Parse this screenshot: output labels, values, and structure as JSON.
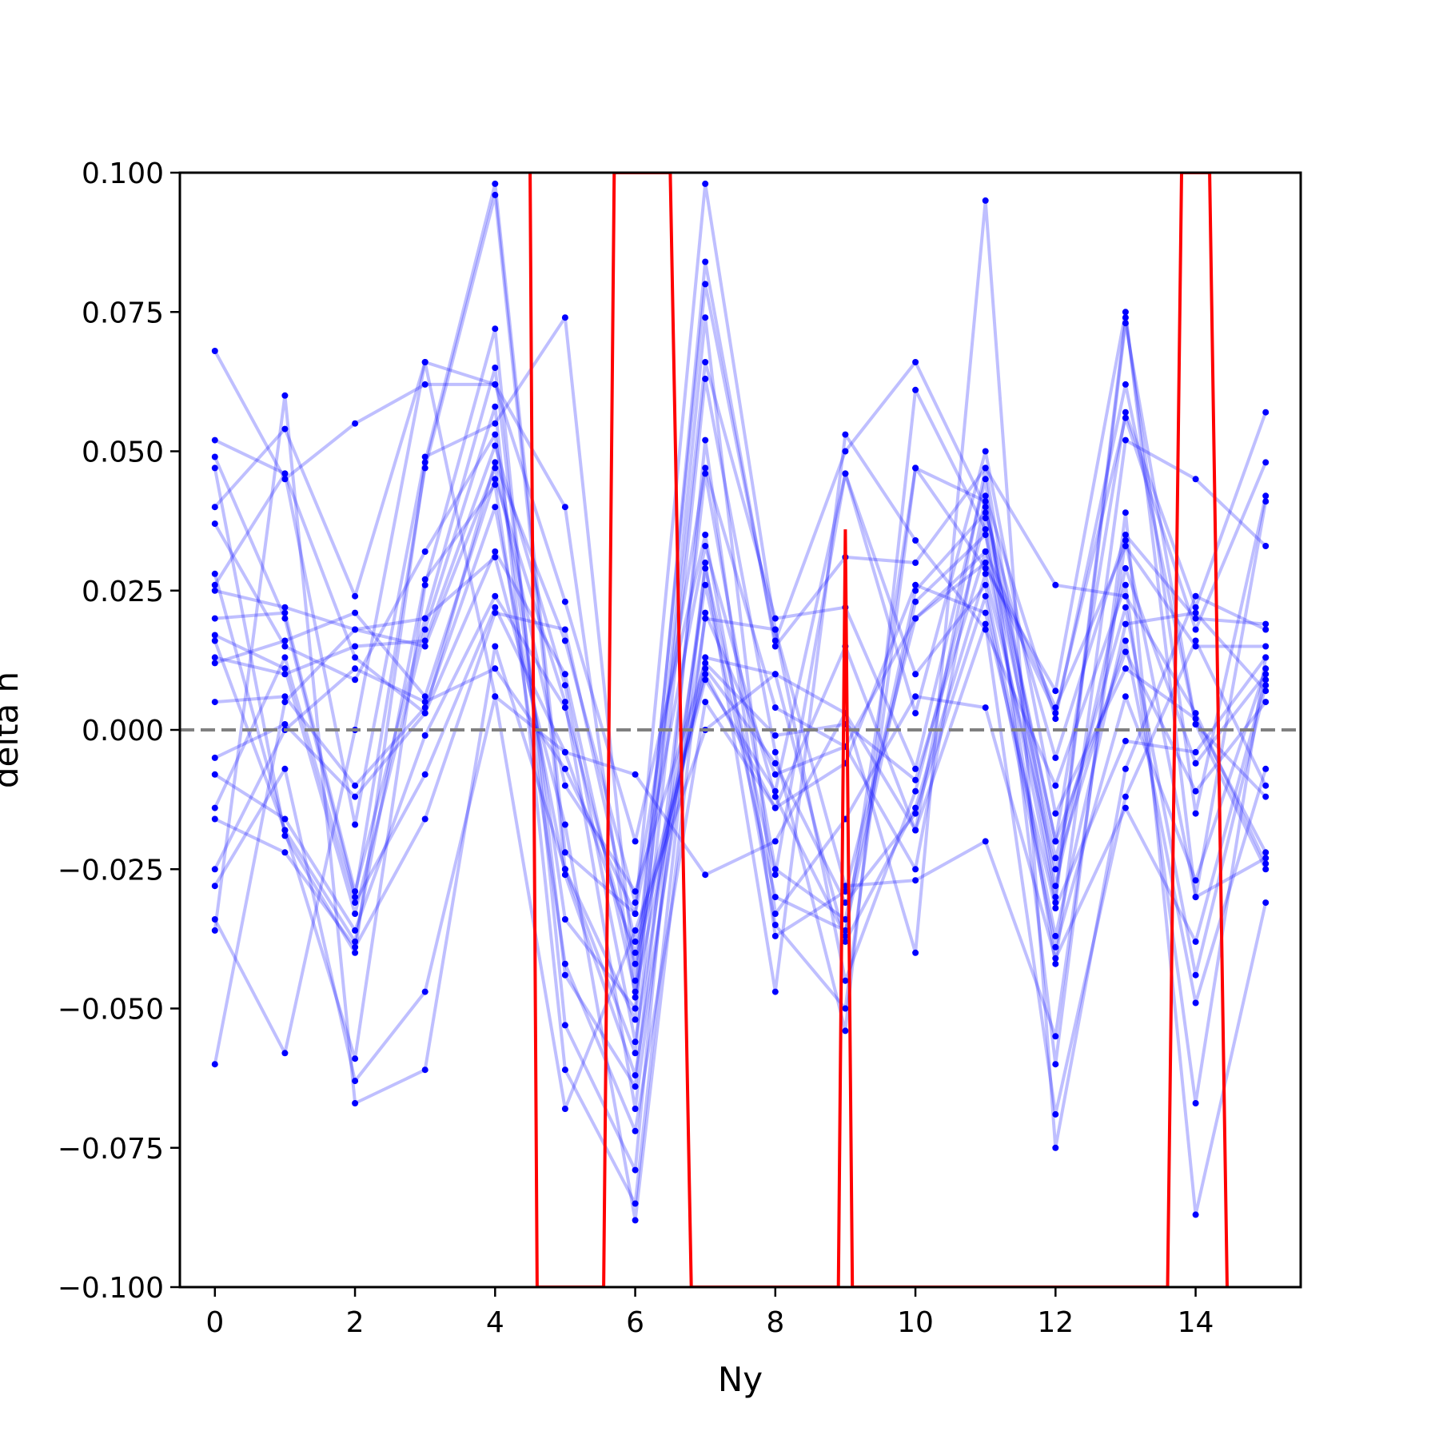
{
  "chart_data": {
    "type": "line",
    "title": "",
    "xlabel": "Ny",
    "ylabel": "delta n",
    "xlim": [
      -0.5,
      15.5
    ],
    "ylim": [
      -0.1,
      0.1
    ],
    "x_ticks": [
      0,
      2,
      4,
      6,
      8,
      10,
      12,
      14
    ],
    "x_tick_labels": [
      "0",
      "2",
      "4",
      "6",
      "8",
      "10",
      "12",
      "14"
    ],
    "y_ticks": [
      -0.1,
      -0.075,
      -0.05,
      -0.025,
      0.0,
      0.025,
      0.05,
      0.075,
      0.1
    ],
    "y_tick_labels": [
      "−0.100",
      "−0.075",
      "−0.050",
      "−0.025",
      "0.000",
      "0.025",
      "0.050",
      "0.075",
      "0.100"
    ],
    "reference_line": {
      "y": 0.0,
      "style": "dashed",
      "color": "#808080"
    },
    "grid": false,
    "colors": {
      "series": "#0000ff",
      "highlight": "#ff0000",
      "reference": "#808080"
    },
    "x": [
      0,
      1,
      2,
      3,
      4,
      5,
      6,
      7,
      8,
      9,
      10,
      11,
      12,
      13,
      14,
      15
    ],
    "series": [
      {
        "values": [
          0.068,
          0.045,
          0.055,
          0.062,
          0.062,
          0.04,
          -0.048,
          0.084,
          0.015,
          0.031,
          0.03,
          0.047,
          0.026,
          0.024,
          0.003,
          -0.024
        ]
      },
      {
        "values": [
          0.052,
          0.046,
          -0.017,
          0.049,
          0.055,
          0.074,
          -0.045,
          0.08,
          0.016,
          0.05,
          0.066,
          0.04,
          -0.02,
          0.057,
          0.022,
          0.057
        ]
      },
      {
        "values": [
          0.049,
          0.02,
          -0.03,
          0.047,
          0.096,
          -0.025,
          -0.058,
          0.063,
          -0.004,
          -0.054,
          0.061,
          0.036,
          -0.042,
          0.052,
          0.045,
          0.033
        ]
      },
      {
        "values": [
          0.047,
          -0.019,
          -0.04,
          0.048,
          0.098,
          -0.022,
          -0.033,
          0.033,
          -0.012,
          -0.037,
          0.047,
          0.041,
          -0.03,
          0.074,
          -0.015,
          0.042
        ]
      },
      {
        "values": [
          0.04,
          0.054,
          0.024,
          0.066,
          0.062,
          0.023,
          -0.02,
          0.035,
          -0.035,
          -0.05,
          0.047,
          0.029,
          0.007,
          0.075,
          -0.03,
          0.041
        ]
      },
      {
        "values": [
          0.037,
          0.015,
          0.009,
          0.032,
          0.053,
          -0.034,
          -0.05,
          0.066,
          0.02,
          0.022,
          -0.007,
          0.045,
          -0.06,
          0.039,
          -0.087,
          -0.031
        ]
      },
      {
        "values": [
          0.028,
          -0.018,
          -0.059,
          0.026,
          0.072,
          -0.053,
          -0.079,
          0.052,
          -0.037,
          -0.029,
          0.02,
          0.03,
          0.003,
          0.056,
          0.018,
          0.048
        ]
      },
      {
        "values": [
          0.025,
          0.022,
          0.018,
          0.02,
          0.065,
          -0.044,
          -0.064,
          0.046,
          -0.025,
          -0.034,
          0.025,
          0.039,
          -0.005,
          0.035,
          0.02,
          0.019
        ]
      },
      {
        "values": [
          0.017,
          0.011,
          -0.033,
          0.018,
          0.058,
          -0.061,
          -0.085,
          0.03,
          -0.047,
          0.053,
          0.034,
          0.018,
          -0.01,
          0.026,
          -0.067,
          0.013
        ]
      },
      {
        "values": [
          0.013,
          0.01,
          0.015,
          0.016,
          0.051,
          0.008,
          -0.056,
          0.026,
          -0.03,
          -0.036,
          0.023,
          0.035,
          -0.023,
          0.022,
          -0.044,
          0.008
        ]
      },
      {
        "values": [
          0.012,
          0.016,
          0.021,
          0.006,
          0.045,
          0.005,
          -0.068,
          0.029,
          -0.026,
          0.046,
          0.01,
          0.026,
          -0.037,
          0.019,
          0.021,
          0.007
        ]
      },
      {
        "values": [
          0.005,
          0.006,
          -0.01,
          0.004,
          0.04,
          -0.026,
          -0.062,
          0.02,
          0.018,
          -0.045,
          -0.011,
          0.038,
          -0.02,
          0.014,
          -0.011,
          0.005
        ]
      },
      {
        "values": [
          -0.005,
          0.001,
          -0.012,
          0.003,
          0.032,
          0.01,
          -0.047,
          0.013,
          0.01,
          -0.038,
          -0.014,
          0.028,
          -0.025,
          0.016,
          -0.049,
          -0.007
        ]
      },
      {
        "values": [
          -0.008,
          -0.016,
          -0.036,
          -0.001,
          0.024,
          0.004,
          -0.042,
          0.011,
          -0.006,
          -0.031,
          -0.015,
          0.024,
          -0.039,
          0.006,
          -0.027,
          0.011
        ]
      },
      {
        "values": [
          -0.014,
          0.013,
          -0.031,
          -0.008,
          0.022,
          -0.004,
          -0.04,
          0.009,
          -0.011,
          0.046,
          0.003,
          0.05,
          -0.015,
          0.011,
          0.002,
          -0.022
        ]
      },
      {
        "values": [
          -0.016,
          -0.022,
          -0.039,
          -0.016,
          0.021,
          0.018,
          -0.038,
          0.01,
          -0.014,
          -0.006,
          0.026,
          0.021,
          -0.032,
          -0.002,
          -0.004,
          0.013
        ]
      },
      {
        "values": [
          -0.025,
          0.0,
          0.011,
          0.005,
          0.011,
          -0.007,
          -0.033,
          0.098,
          0.018,
          -0.028,
          -0.027,
          -0.02,
          -0.055,
          0.034,
          -0.03,
          -0.023
        ]
      },
      {
        "values": [
          -0.028,
          -0.007,
          -0.063,
          -0.047,
          0.006,
          -0.068,
          -0.036,
          0.0,
          0.01,
          0.003,
          -0.018,
          0.019,
          -0.069,
          -0.012,
          0.016,
          -0.01
        ]
      },
      {
        "values": [
          -0.034,
          -0.058,
          0.0,
          0.066,
          0.006,
          -0.004,
          -0.008,
          -0.026,
          -0.02,
          0.003,
          -0.04,
          0.095,
          -0.075,
          -0.007,
          0.024,
          0.018
        ]
      },
      {
        "values": [
          -0.036,
          0.06,
          -0.067,
          -0.061,
          0.015,
          -0.025,
          -0.052,
          0.074,
          -0.033,
          -0.016,
          0.006,
          0.004,
          -0.041,
          -0.014,
          -0.038,
          0.009
        ]
      },
      {
        "values": [
          -0.06,
          0.005,
          0.018,
          0.015,
          0.047,
          -0.01,
          -0.029,
          0.012,
          -0.001,
          0.001,
          -0.009,
          0.032,
          -0.031,
          0.073,
          0.001,
          -0.025
        ]
      },
      {
        "values": [
          0.02,
          0.021,
          -0.029,
          0.02,
          0.031,
          -0.017,
          -0.088,
          0.021,
          -0.008,
          -0.003,
          -0.025,
          0.042,
          0.002,
          0.062,
          0.001,
          -0.012
        ]
      },
      {
        "values": [
          0.016,
          -0.018,
          -0.038,
          0.027,
          0.044,
          -0.042,
          -0.072,
          0.005,
          -0.014,
          0.015,
          -0.018,
          0.047,
          -0.028,
          0.029,
          -0.006,
          0.01
        ]
      },
      {
        "values": [
          0.026,
          0.046,
          0.013,
          0.003,
          0.048,
          0.016,
          -0.031,
          0.047,
          0.004,
          -0.003,
          0.02,
          0.032,
          0.004,
          0.033,
          0.015,
          0.015
        ]
      }
    ],
    "highlight_series": {
      "name": "",
      "x": [
        4.5,
        4.6,
        5.55,
        5.7,
        6.5,
        6.8,
        8.9,
        9.0,
        9.1,
        13.6,
        13.8,
        14.2,
        14.45
      ],
      "values": [
        0.1,
        -0.1,
        -0.1,
        0.1,
        0.1,
        -0.1,
        -0.1,
        0.036,
        -0.1,
        -0.1,
        0.1,
        0.1,
        -0.1
      ]
    }
  }
}
